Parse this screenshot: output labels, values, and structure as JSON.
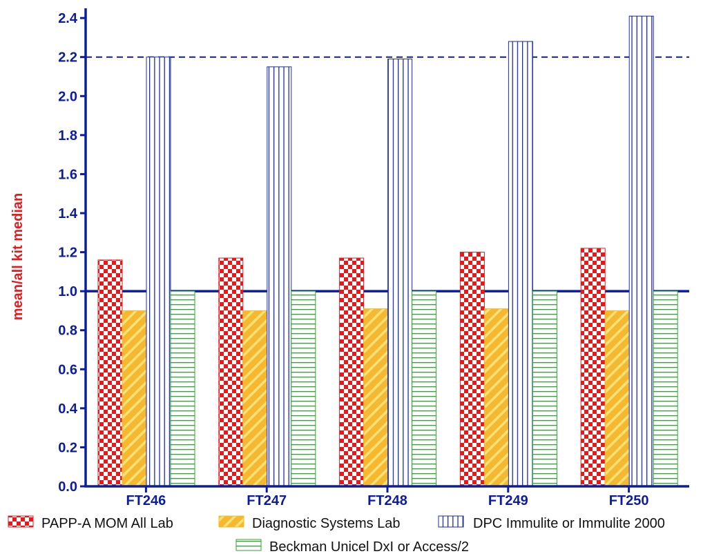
{
  "chart_data": {
    "type": "bar",
    "title": "",
    "xlabel": "",
    "ylabel": "mean/all kit median",
    "ylim": [
      0,
      2.45
    ],
    "yticks": [
      "0.0",
      "0.2",
      "0.4",
      "0.6",
      "0.8",
      "1.0",
      "1.2",
      "1.4",
      "1.6",
      "1.8",
      "2.0",
      "2.2",
      "2.4"
    ],
    "categories": [
      "FT246",
      "FT247",
      "FT248",
      "FT249",
      "FT250"
    ],
    "series": [
      {
        "name": "PAPP-A MOM All Lab",
        "values": [
          1.16,
          1.17,
          1.17,
          1.2,
          1.22
        ]
      },
      {
        "name": "Diagnostic Systems Lab",
        "values": [
          0.9,
          0.9,
          0.91,
          0.91,
          0.9
        ]
      },
      {
        "name": "DPC Immulite or Immulite 2000",
        "values": [
          2.2,
          2.15,
          2.19,
          2.28,
          2.41
        ]
      },
      {
        "name": "Beckman Unicel DxI or Access/2",
        "values": [
          1.0,
          1.0,
          1.0,
          1.0,
          1.0
        ]
      }
    ],
    "reference_lines": [
      {
        "value": 1.0,
        "style": "solid"
      },
      {
        "value": 2.2,
        "style": "dashed"
      }
    ],
    "grid": false,
    "legend_position": "bottom",
    "colors": {
      "axis": "#0b1d9e",
      "ylabel": "#e8191a",
      "series": [
        "#e8191a",
        "#f5b82e",
        "#1b2bb0",
        "#2aa82a"
      ]
    }
  }
}
